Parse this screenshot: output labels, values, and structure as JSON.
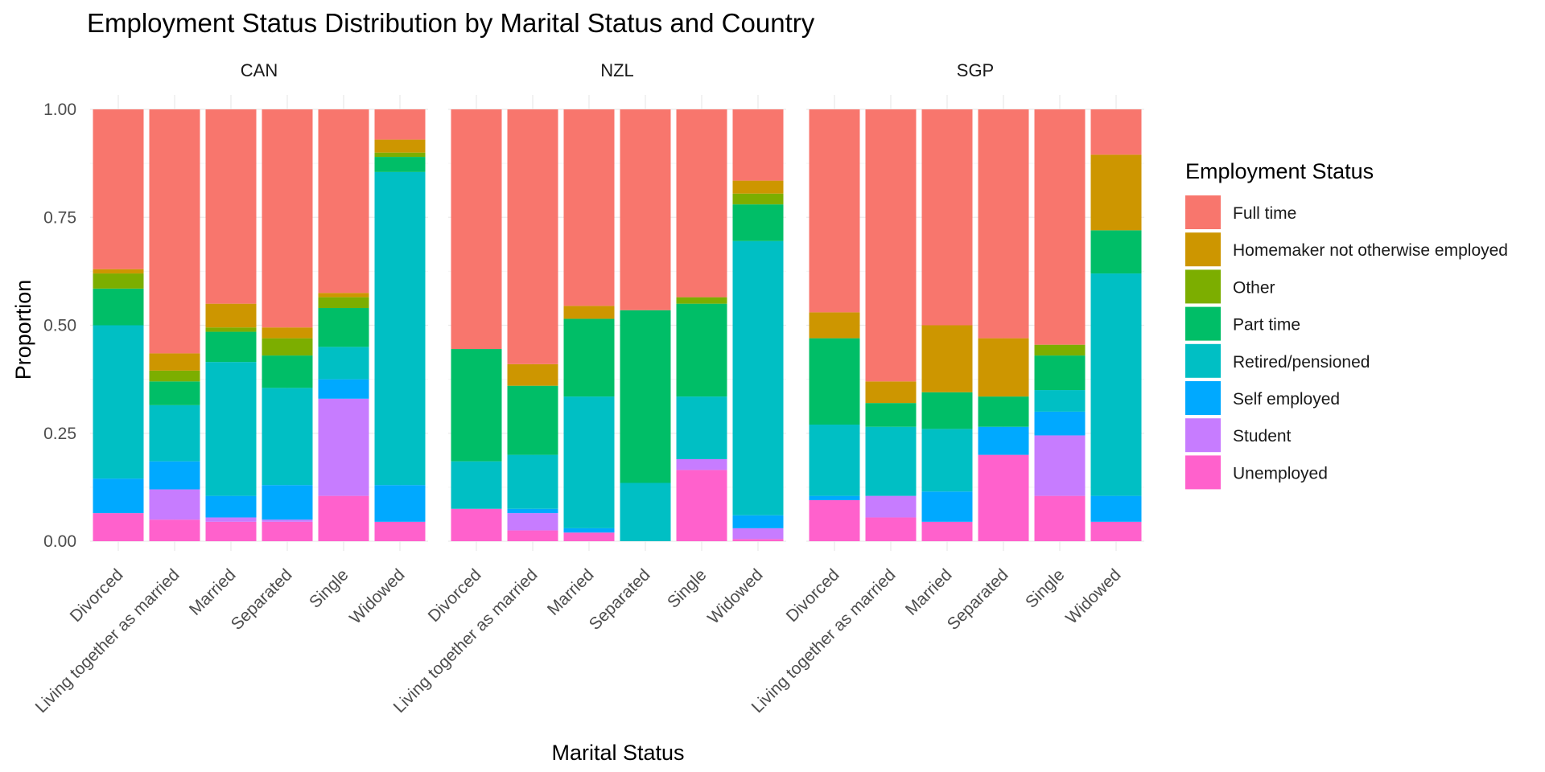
{
  "chart_data": {
    "type": "bar",
    "stacked": true,
    "title": "Employment Status Distribution by Marital Status and Country",
    "xlabel": "Marital Status",
    "ylabel": "Proportion",
    "ylim": [
      0,
      1
    ],
    "yticks": [
      "0.00",
      "0.25",
      "0.50",
      "0.75",
      "1.00"
    ],
    "categories": [
      "Divorced",
      "Living together as married",
      "Married",
      "Separated",
      "Single",
      "Widowed"
    ],
    "legend": {
      "title": "Employment Status",
      "position": "right",
      "entries": [
        "Full time",
        "Homemaker not otherwise employed",
        "Other",
        "Part time",
        "Retired/pensioned",
        "Self employed",
        "Student",
        "Unemployed"
      ]
    },
    "colors": {
      "Full time": "#F8766D",
      "Homemaker not otherwise employed": "#CD9600",
      "Other": "#7CAE00",
      "Part time": "#00BE67",
      "Retired/pensioned": "#00BFC4",
      "Self employed": "#00A9FF",
      "Student": "#C77CFF",
      "Unemployed": "#FF61CC"
    },
    "stack_order_bottom_to_top": [
      "Unemployed",
      "Student",
      "Self employed",
      "Retired/pensioned",
      "Part time",
      "Other",
      "Homemaker not otherwise employed",
      "Full time"
    ],
    "facets": [
      {
        "name": "CAN",
        "values": {
          "Unemployed": [
            0.065,
            0.05,
            0.045,
            0.045,
            0.105,
            0.045
          ],
          "Student": [
            0.0,
            0.07,
            0.01,
            0.005,
            0.225,
            0.0
          ],
          "Self employed": [
            0.08,
            0.065,
            0.05,
            0.08,
            0.045,
            0.085
          ],
          "Retired/pensioned": [
            0.355,
            0.13,
            0.31,
            0.225,
            0.075,
            0.725
          ],
          "Part time": [
            0.085,
            0.055,
            0.07,
            0.075,
            0.09,
            0.035
          ],
          "Other": [
            0.035,
            0.025,
            0.01,
            0.04,
            0.025,
            0.01
          ],
          "Homemaker not otherwise employed": [
            0.01,
            0.04,
            0.055,
            0.025,
            0.01,
            0.03
          ],
          "Full time": [
            0.37,
            0.565,
            0.45,
            0.505,
            0.425,
            0.07
          ]
        }
      },
      {
        "name": "NZL",
        "values": {
          "Unemployed": [
            0.075,
            0.025,
            0.02,
            0.0,
            0.165,
            0.005
          ],
          "Student": [
            0.0,
            0.04,
            0.0,
            0.0,
            0.025,
            0.025
          ],
          "Self employed": [
            0.0,
            0.01,
            0.01,
            0.0,
            0.0,
            0.03
          ],
          "Retired/pensioned": [
            0.11,
            0.125,
            0.305,
            0.135,
            0.145,
            0.635
          ],
          "Part time": [
            0.26,
            0.16,
            0.18,
            0.4,
            0.215,
            0.085
          ],
          "Other": [
            0.0,
            0.0,
            0.0,
            0.0,
            0.015,
            0.025
          ],
          "Homemaker not otherwise employed": [
            0.0,
            0.05,
            0.03,
            0.0,
            0.0,
            0.03
          ],
          "Full time": [
            0.555,
            0.59,
            0.455,
            0.465,
            0.435,
            0.165
          ]
        }
      },
      {
        "name": "SGP",
        "values": {
          "Unemployed": [
            0.095,
            0.055,
            0.045,
            0.2,
            0.105,
            0.045
          ],
          "Student": [
            0.0,
            0.05,
            0.0,
            0.0,
            0.14,
            0.0
          ],
          "Self employed": [
            0.01,
            0.0,
            0.07,
            0.065,
            0.055,
            0.06
          ],
          "Retired/pensioned": [
            0.165,
            0.16,
            0.145,
            0.0,
            0.05,
            0.515
          ],
          "Part time": [
            0.2,
            0.055,
            0.085,
            0.07,
            0.08,
            0.1
          ],
          "Other": [
            0.0,
            0.0,
            0.0,
            0.0,
            0.025,
            0.0
          ],
          "Homemaker not otherwise employed": [
            0.06,
            0.05,
            0.155,
            0.135,
            0.0,
            0.175
          ],
          "Full time": [
            0.47,
            0.63,
            0.5,
            0.53,
            0.545,
            0.105
          ]
        }
      }
    ]
  }
}
